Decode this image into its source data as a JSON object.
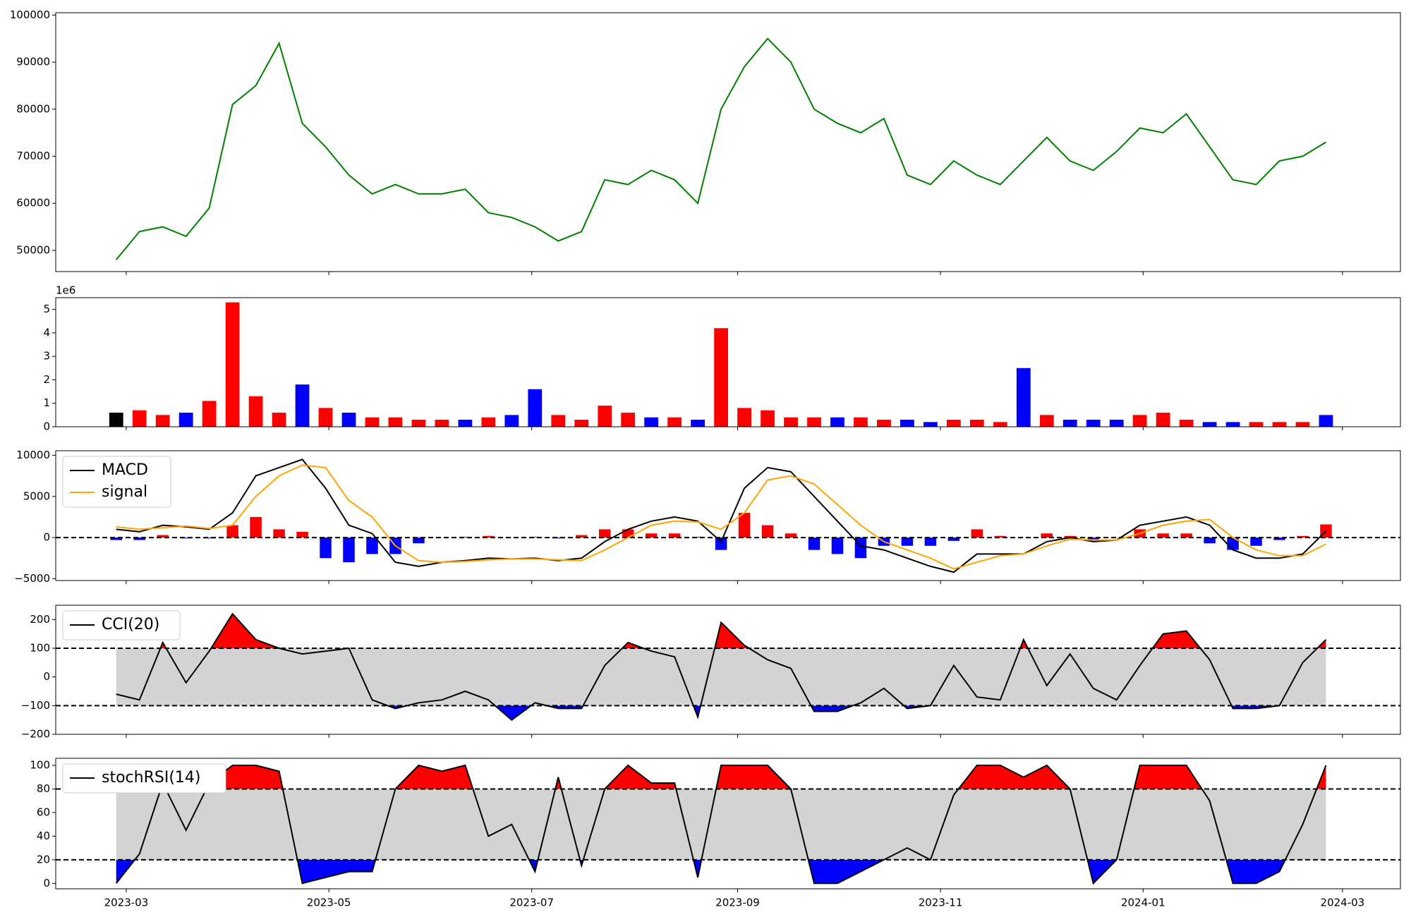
{
  "chart_data": [
    {
      "type": "line",
      "color": "green",
      "xlim": [
        -2.6,
        55.2
      ],
      "ylim": [
        45500,
        100500
      ],
      "yticks": [
        50000,
        60000,
        70000,
        80000,
        90000,
        100000
      ],
      "values": [
        48000,
        54000,
        55000,
        53000,
        59000,
        81000,
        85000,
        94000,
        77000,
        72000,
        66000,
        62000,
        64000,
        62000,
        62000,
        63000,
        58000,
        57000,
        55000,
        52000,
        54000,
        65000,
        64000,
        67000,
        65000,
        60000,
        80000,
        89000,
        95000,
        90000,
        80000,
        77000,
        75000,
        78000,
        66000,
        64000,
        69000,
        66000,
        64000,
        69000,
        74000,
        69000,
        67000,
        71000,
        76000,
        75000,
        79000,
        72000,
        65000,
        64000,
        69000,
        70000,
        73000
      ]
    },
    {
      "type": "bar",
      "xlim": [
        -2.6,
        55.2
      ],
      "ylim": [
        0,
        5.5
      ],
      "yticks": [
        0,
        1,
        2,
        3,
        4,
        5
      ],
      "y_offset_label": "1e6",
      "values": [
        0.6,
        0.7,
        0.5,
        0.6,
        1.1,
        5.3,
        1.3,
        0.6,
        1.8,
        0.8,
        0.6,
        0.4,
        0.4,
        0.3,
        0.3,
        0.3,
        0.4,
        0.5,
        1.6,
        0.5,
        0.3,
        0.9,
        0.6,
        0.4,
        0.4,
        0.3,
        4.2,
        0.8,
        0.7,
        0.4,
        0.4,
        0.4,
        0.4,
        0.3,
        0.3,
        0.2,
        0.3,
        0.3,
        0.2,
        2.5,
        0.5,
        0.3,
        0.3,
        0.3,
        0.5,
        0.6,
        0.3,
        0.2,
        0.2,
        0.2,
        0.2,
        0.2,
        0.5
      ],
      "colors": [
        "black",
        "red",
        "red",
        "blue",
        "red",
        "red",
        "red",
        "red",
        "blue",
        "red",
        "blue",
        "red",
        "red",
        "red",
        "red",
        "blue",
        "red",
        "blue",
        "blue",
        "red",
        "red",
        "red",
        "red",
        "blue",
        "red",
        "blue",
        "red",
        "red",
        "red",
        "red",
        "red",
        "blue",
        "red",
        "red",
        "blue",
        "blue",
        "red",
        "red",
        "red",
        "blue",
        "red",
        "blue",
        "blue",
        "blue",
        "red",
        "red",
        "red",
        "blue",
        "blue",
        "red",
        "red",
        "red",
        "blue"
      ]
    },
    {
      "type": "macd",
      "xlim": [
        -2.6,
        55.2
      ],
      "ylim": [
        -5220,
        10550
      ],
      "yticks": [
        {
          "value": -5000,
          "label": "−5000"
        },
        0,
        5000,
        10000
      ],
      "hlines": [
        0
      ],
      "legend": "upper left",
      "series": [
        {
          "name": "MACD",
          "color": "black",
          "values": [
            1000,
            700,
            1500,
            1300,
            1000,
            3000,
            7500,
            8500,
            9500,
            6000,
            1500,
            500,
            -3000,
            -3500,
            -3000,
            -2800,
            -2500,
            -2600,
            -2500,
            -2800,
            -2500,
            -500,
            1000,
            2000,
            2500,
            2000,
            -500,
            6000,
            8500,
            8000,
            5000,
            2000,
            -1000,
            -1500,
            -2500,
            -3500,
            -4200,
            -2000,
            -2000,
            -2000,
            -500,
            0,
            -500,
            -300,
            1500,
            2000,
            2500,
            1500,
            -1500,
            -2500,
            -2500,
            -2000,
            800
          ]
        },
        {
          "name": "signal",
          "color": "orange",
          "values": [
            1300,
            1000,
            1200,
            1400,
            1100,
            1500,
            5000,
            7500,
            8800,
            8500,
            4500,
            2500,
            -1000,
            -2800,
            -3000,
            -2900,
            -2700,
            -2600,
            -2600,
            -2700,
            -2800,
            -1500,
            0,
            1500,
            2000,
            1900,
            1000,
            3000,
            7000,
            7500,
            6500,
            4000,
            1500,
            -500,
            -1500,
            -2500,
            -3800,
            -3000,
            -2200,
            -2000,
            -1000,
            -200,
            -300,
            -300,
            500,
            1500,
            2000,
            2200,
            0,
            -1500,
            -2200,
            -2200,
            -800
          ]
        }
      ],
      "histogram": {
        "pos_color": "red",
        "neg_color": "blue",
        "values": [
          -300,
          -300,
          300,
          -100,
          -100,
          1500,
          2500,
          1000,
          700,
          -2500,
          -3000,
          -2000,
          -2000,
          -700,
          0,
          100,
          200,
          0,
          100,
          -100,
          300,
          1000,
          1000,
          500,
          500,
          100,
          -1500,
          3000,
          1500,
          500,
          -1500,
          -2000,
          -2500,
          -1000,
          -1000,
          -1000,
          -400,
          1000,
          200,
          0,
          500,
          200,
          -200,
          0,
          1000,
          500,
          500,
          -700,
          -1500,
          -1000,
          -300,
          200,
          1600
        ]
      }
    },
    {
      "type": "oscillator",
      "xlim": [
        -2.6,
        55.2
      ],
      "ylim": [
        -200,
        250
      ],
      "yticks": [
        {
          "value": -200,
          "label": "−200"
        },
        {
          "value": -100,
          "label": "−100"
        },
        0,
        100,
        200
      ],
      "upper": 100,
      "lower": -100,
      "band_color": "#d3d3d3",
      "upper_color": "red",
      "lower_color": "blue",
      "legend": "upper left",
      "series": [
        {
          "name": "CCI(20)",
          "color": "black",
          "values": [
            -60,
            -80,
            120,
            -20,
            90,
            220,
            130,
            100,
            80,
            90,
            100,
            -80,
            -110,
            -90,
            -80,
            -50,
            -80,
            -150,
            -90,
            -110,
            -110,
            40,
            120,
            90,
            70,
            -140,
            190,
            110,
            60,
            30,
            -120,
            -120,
            -90,
            -40,
            -110,
            -100,
            40,
            -70,
            -80,
            130,
            -30,
            80,
            -40,
            -80,
            40,
            150,
            160,
            60,
            -110,
            -110,
            -100,
            50,
            130
          ]
        }
      ]
    },
    {
      "type": "oscillator",
      "xlim": [
        -2.6,
        55.2
      ],
      "ylim": [
        -4.6,
        106
      ],
      "yticks": [
        0,
        20,
        40,
        60,
        80,
        100
      ],
      "xticks": [
        {
          "value": 0.43,
          "label": "2023-03"
        },
        {
          "value": 9.14,
          "label": "2023-05"
        },
        {
          "value": 17.86,
          "label": "2023-07"
        },
        {
          "value": 26.71,
          "label": "2023-09"
        },
        {
          "value": 35.43,
          "label": "2023-11"
        },
        {
          "value": 44.14,
          "label": "2024-01"
        },
        {
          "value": 52.71,
          "label": "2024-03"
        }
      ],
      "upper": 80,
      "lower": 20,
      "band_color": "#d3d3d3",
      "upper_color": "red",
      "lower_color": "blue",
      "legend": "upper left",
      "series": [
        {
          "name": "stochRSI(14)",
          "color": "black",
          "values": [
            0,
            25,
            85,
            45,
            85,
            100,
            100,
            95,
            0,
            5,
            10,
            10,
            80,
            100,
            95,
            100,
            40,
            50,
            10,
            90,
            15,
            80,
            100,
            85,
            85,
            5,
            100,
            100,
            100,
            80,
            0,
            0,
            10,
            20,
            30,
            20,
            75,
            100,
            100,
            90,
            100,
            80,
            0,
            20,
            100,
            100,
            100,
            70,
            0,
            0,
            10,
            50,
            100
          ]
        }
      ]
    }
  ]
}
